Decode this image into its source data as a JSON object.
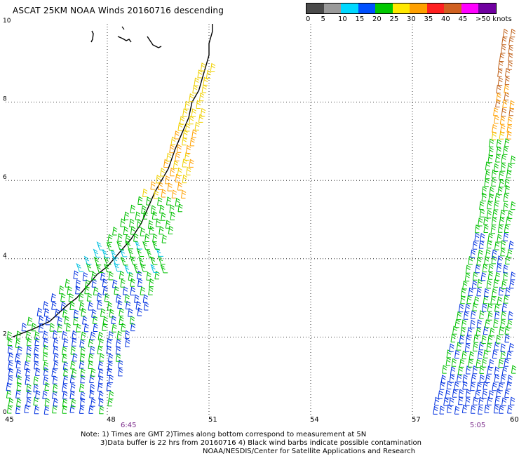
{
  "title": "ASCAT 25KM NOAA Winds 20160716 descending",
  "legend": {
    "labels": [
      "0",
      "5",
      "10",
      "15",
      "20",
      "25",
      "30",
      "35",
      "40",
      "45",
      ">50 knots"
    ],
    "colors": [
      "#4a4a4a",
      "#9a9a9a",
      "#00d8ff",
      "#0050ff",
      "#00c800",
      "#ffe800",
      "#ffa000",
      "#ff2020",
      "#d06020",
      "#ff00ff",
      "#7000a0"
    ]
  },
  "notes": {
    "line1": "Note: 1) Times are GMT 2)Times along bottom correspond to measurement at 5N",
    "line2": "3)Data buffer is 22 hrs from 20160716 4) Black wind barbs indicate possible contamination",
    "line3": "NOAA/NESDIS/Center for Satellite Applications and Research"
  },
  "chart_data": {
    "type": "wind-barb map",
    "xlim": [
      45,
      60
    ],
    "ylim": [
      0,
      10
    ],
    "x_ticks": [
      "45",
      "48",
      "51",
      "54",
      "57",
      "60"
    ],
    "y_ticks": [
      "0",
      "2",
      "4",
      "6",
      "8",
      "10"
    ],
    "grid": true,
    "time_labels": [
      {
        "text": "6:45",
        "x": 48.6
      },
      {
        "text": "5:05",
        "x": 58.9
      }
    ],
    "wind_colors": {
      "10-15 kt": "#0030e0",
      "15-20 kt": "#00c000",
      "20-25 kt": "#f0d000",
      "25-30 kt": "#ffa000",
      "35-40 kt": "#c06018",
      "cyan": "#00c0e0"
    },
    "coastline": [
      [
        45.2,
        2.0
      ],
      [
        45.8,
        2.2
      ],
      [
        46.3,
        2.4
      ],
      [
        46.8,
        2.8
      ],
      [
        47.1,
        3.0
      ],
      [
        47.4,
        3.3
      ],
      [
        47.7,
        3.6
      ],
      [
        48.0,
        3.8
      ],
      [
        48.4,
        4.2
      ],
      [
        48.7,
        4.5
      ],
      [
        49.0,
        4.9
      ],
      [
        49.2,
        5.3
      ],
      [
        49.4,
        5.7
      ],
      [
        49.6,
        6.0
      ],
      [
        49.8,
        6.3
      ],
      [
        50.0,
        6.8
      ],
      [
        50.2,
        7.2
      ],
      [
        50.4,
        7.6
      ],
      [
        50.5,
        8.0
      ],
      [
        50.7,
        8.3
      ],
      [
        50.8,
        8.6
      ],
      [
        50.9,
        8.9
      ],
      [
        51.0,
        9.2
      ],
      [
        51.0,
        9.5
      ],
      [
        51.1,
        9.8
      ],
      [
        51.1,
        10.0
      ]
    ]
  }
}
